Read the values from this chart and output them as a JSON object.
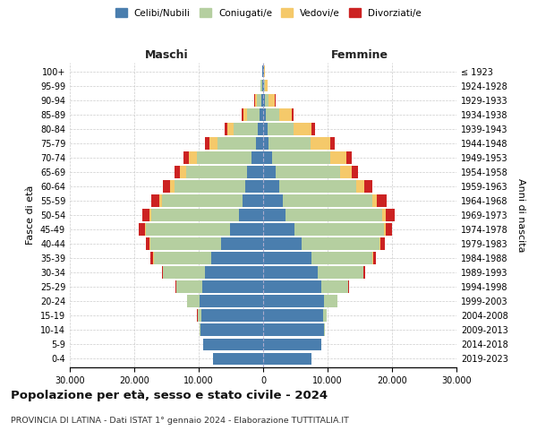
{
  "age_groups": [
    "0-4",
    "5-9",
    "10-14",
    "15-19",
    "20-24",
    "25-29",
    "30-34",
    "35-39",
    "40-44",
    "45-49",
    "50-54",
    "55-59",
    "60-64",
    "65-69",
    "70-74",
    "75-79",
    "80-84",
    "85-89",
    "90-94",
    "95-99",
    "100+"
  ],
  "birth_years": [
    "2019-2023",
    "2014-2018",
    "2009-2013",
    "2004-2008",
    "1999-2003",
    "1994-1998",
    "1989-1993",
    "1984-1988",
    "1979-1983",
    "1974-1978",
    "1969-1973",
    "1964-1968",
    "1959-1963",
    "1954-1958",
    "1949-1953",
    "1944-1948",
    "1939-1943",
    "1934-1938",
    "1929-1933",
    "1924-1928",
    "≤ 1923"
  ],
  "colors": {
    "celibi": "#4a7eae",
    "coniugati": "#b5cfa0",
    "vedovi": "#f5c96a",
    "divorziati": "#cc2222"
  },
  "male": {
    "celibi": [
      7800,
      9300,
      9700,
      9600,
      9800,
      9500,
      9000,
      8000,
      6500,
      5200,
      3800,
      3200,
      2800,
      2500,
      1800,
      1100,
      800,
      500,
      300,
      150,
      100
    ],
    "coniugati": [
      20,
      50,
      100,
      600,
      2000,
      4000,
      6500,
      9000,
      11000,
      13000,
      13500,
      12500,
      11000,
      9500,
      8500,
      6000,
      3800,
      2000,
      700,
      200,
      50
    ],
    "vedovi": [
      0,
      0,
      1,
      2,
      5,
      10,
      30,
      50,
      100,
      150,
      300,
      400,
      700,
      900,
      1200,
      1200,
      1000,
      600,
      300,
      100,
      30
    ],
    "divorziati": [
      1,
      2,
      5,
      20,
      50,
      100,
      200,
      400,
      600,
      900,
      1200,
      1300,
      1100,
      900,
      900,
      700,
      400,
      200,
      80,
      30,
      10
    ]
  },
  "female": {
    "celibi": [
      7500,
      9000,
      9500,
      9300,
      9500,
      9000,
      8500,
      7500,
      6000,
      4800,
      3500,
      3000,
      2500,
      2000,
      1400,
      900,
      700,
      450,
      250,
      120,
      80
    ],
    "coniugati": [
      15,
      40,
      100,
      600,
      2000,
      4200,
      7000,
      9500,
      12000,
      14000,
      15000,
      14000,
      12000,
      10000,
      9000,
      6500,
      4000,
      2000,
      600,
      150,
      30
    ],
    "vedovi": [
      0,
      0,
      0,
      2,
      5,
      10,
      30,
      70,
      150,
      250,
      500,
      700,
      1200,
      1800,
      2500,
      3000,
      2800,
      2000,
      1000,
      400,
      100
    ],
    "divorziati": [
      1,
      2,
      5,
      20,
      60,
      120,
      250,
      450,
      700,
      1000,
      1400,
      1500,
      1200,
      900,
      900,
      700,
      500,
      250,
      100,
      30,
      10
    ]
  },
  "xlim": 30000,
  "xticks": [
    -30000,
    -20000,
    -10000,
    0,
    10000,
    20000,
    30000
  ],
  "xtick_labels": [
    "30.000",
    "20.000",
    "10.000",
    "0",
    "10.000",
    "20.000",
    "30.000"
  ],
  "title": "Popolazione per età, sesso e stato civile - 2024",
  "subtitle": "PROVINCIA DI LATINA - Dati ISTAT 1° gennaio 2024 - Elaborazione TUTTITALIA.IT",
  "ylabel_left": "Fasce di età",
  "ylabel_right": "Anni di nascita",
  "label_maschi": "Maschi",
  "label_femmine": "Femmine",
  "legend_labels": [
    "Celibi/Nubili",
    "Coniugati/e",
    "Vedovi/e",
    "Divorziati/e"
  ],
  "background_color": "#ffffff",
  "grid_color": "#cccccc"
}
